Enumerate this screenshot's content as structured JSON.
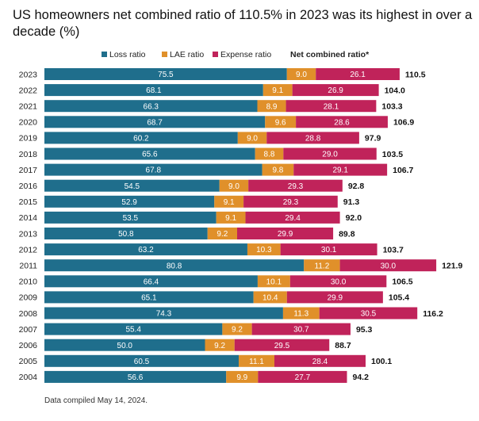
{
  "title": "US homeowners net combined ratio of 110.5% in 2023 was its highest in over a decade (%)",
  "note": "Data compiled May 14, 2024.",
  "legend": {
    "loss": "Loss ratio",
    "lae": "LAE ratio",
    "expense": "Expense ratio",
    "net": "Net combined ratio*"
  },
  "colors": {
    "loss": "#1f6e8c",
    "lae": "#e0902a",
    "expense": "#c0235a"
  },
  "chart_data": {
    "type": "bar",
    "orientation": "horizontal",
    "stacked": true,
    "categories": [
      "2023",
      "2022",
      "2021",
      "2020",
      "2019",
      "2018",
      "2017",
      "2016",
      "2015",
      "2014",
      "2013",
      "2012",
      "2011",
      "2010",
      "2009",
      "2008",
      "2007",
      "2006",
      "2005",
      "2004"
    ],
    "series": [
      {
        "name": "Loss ratio",
        "values": [
          75.5,
          68.1,
          66.3,
          68.7,
          60.2,
          65.6,
          67.8,
          54.5,
          52.9,
          53.5,
          50.8,
          63.2,
          80.8,
          66.4,
          65.1,
          74.3,
          55.4,
          50.0,
          60.5,
          56.6
        ]
      },
      {
        "name": "LAE ratio",
        "values": [
          9.0,
          9.1,
          8.9,
          9.6,
          9.0,
          8.8,
          9.8,
          9.0,
          9.1,
          9.1,
          9.2,
          10.3,
          11.2,
          10.1,
          10.4,
          11.3,
          9.2,
          9.2,
          11.1,
          9.9
        ]
      },
      {
        "name": "Expense ratio",
        "values": [
          26.1,
          26.9,
          28.1,
          28.6,
          28.8,
          29.0,
          29.1,
          29.3,
          29.3,
          29.4,
          29.9,
          30.1,
          30.0,
          30.0,
          29.9,
          30.5,
          30.7,
          29.5,
          28.4,
          27.7
        ]
      }
    ],
    "totals_label": "Net combined ratio*",
    "totals": [
      "110.5",
      "104.0",
      "103.3",
      "106.9",
      "97.9",
      "103.5",
      "106.7",
      "92.8",
      "91.3",
      "92.0",
      "89.8",
      "103.7",
      "121.9",
      "106.5",
      "105.4",
      "116.2",
      "95.3",
      "88.7",
      "100.1",
      "94.2"
    ],
    "grid": false,
    "legend_position": "top"
  }
}
